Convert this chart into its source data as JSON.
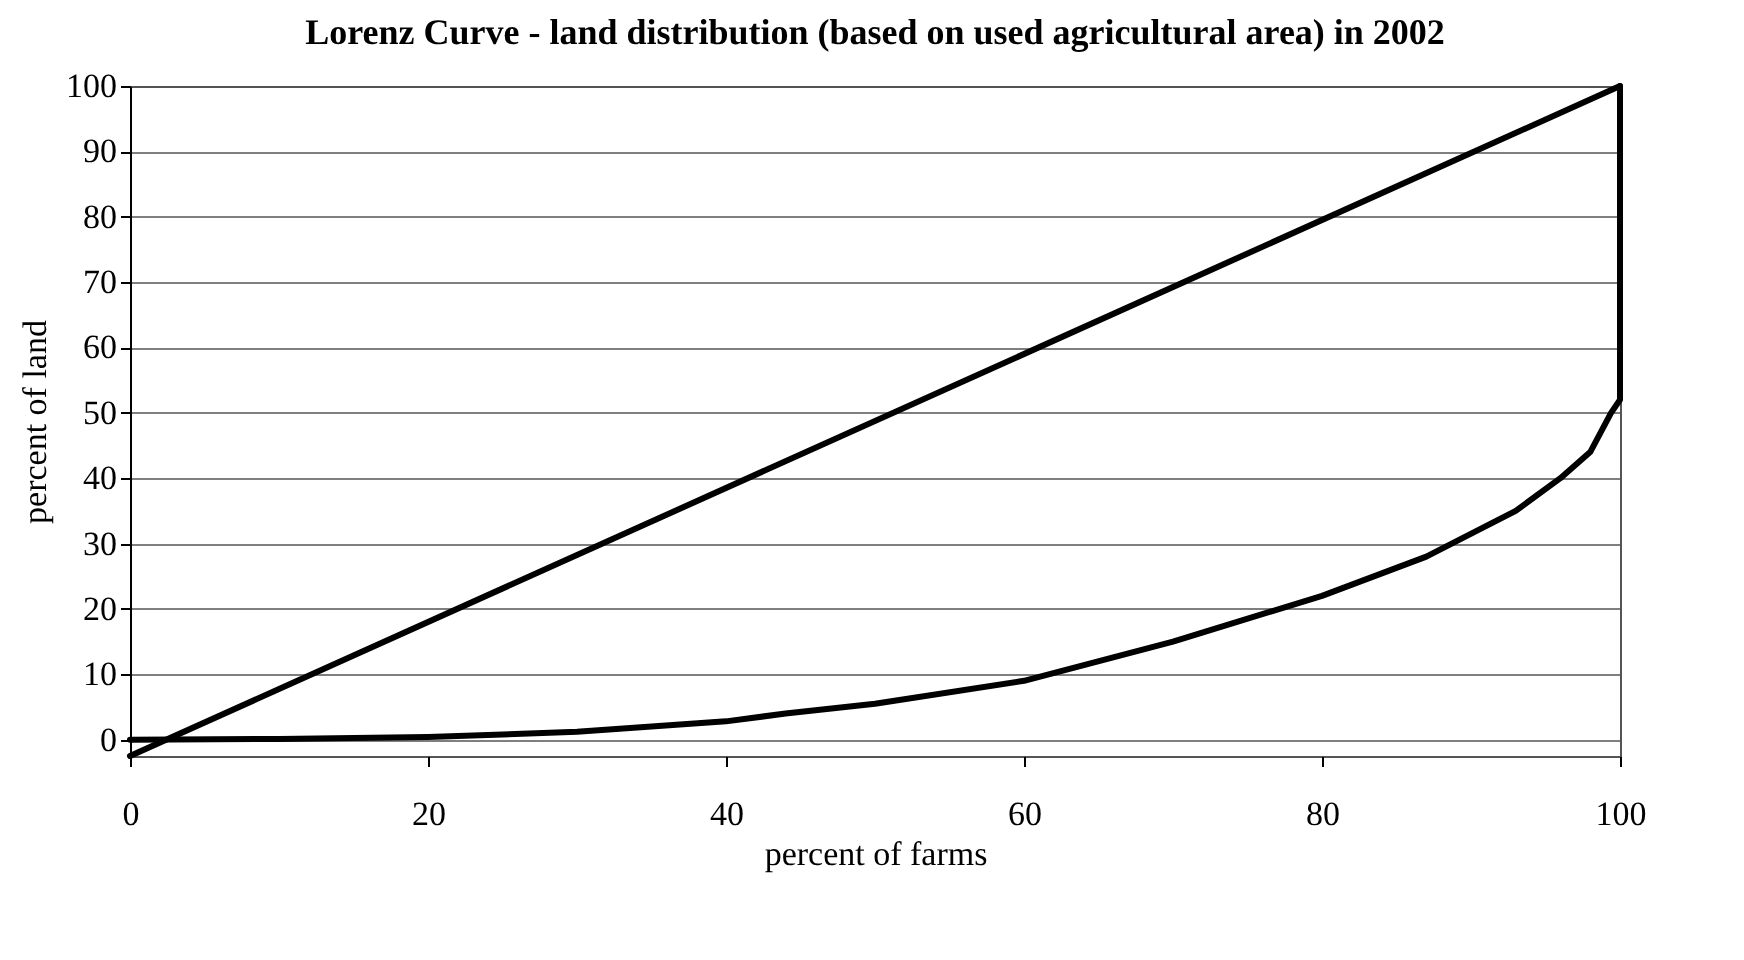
{
  "chart_data": {
    "type": "line",
    "title": "Lorenz Curve - land distribution (based on used agricultural area) in 2002",
    "xlabel": "percent of farms",
    "ylabel": "percent of land",
    "series": [
      {
        "color": "#000000",
        "x": [
          0,
          100
        ],
        "values": [
          -2.5,
          100
        ]
      },
      {
        "color": "#000000",
        "x": [
          0,
          10,
          20,
          30,
          40,
          44,
          50,
          60,
          70,
          80,
          87,
          93,
          96,
          98,
          99.4,
          100,
          100
        ],
        "values": [
          0,
          0.1,
          0.4,
          1.2,
          2.8,
          4,
          5.5,
          9,
          15,
          22,
          28,
          35,
          40,
          44,
          50,
          52,
          100
        ]
      }
    ],
    "xlim": [
      0,
      100
    ],
    "xticks": [
      0,
      20,
      40,
      60,
      80,
      100
    ],
    "ylim": [
      -2.5,
      100
    ],
    "yticks": [
      0,
      10,
      20,
      30,
      40,
      50,
      60,
      70,
      80,
      90,
      100
    ],
    "grid": "y",
    "marker": "none",
    "line_style": "solid"
  }
}
